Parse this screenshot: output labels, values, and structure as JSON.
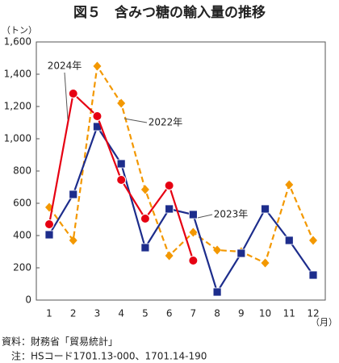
{
  "chart_data": {
    "type": "line",
    "title": "図５　含みつ糖の輸入量の推移",
    "y_unit": "（トン）",
    "x_unit": "（月）",
    "categories": [
      "1",
      "2",
      "3",
      "4",
      "5",
      "6",
      "7",
      "8",
      "9",
      "10",
      "11",
      "12"
    ],
    "series": [
      {
        "name": "2022年",
        "color": "#f39800",
        "line_style": "dashed",
        "marker": "diamond",
        "values": [
          575,
          370,
          1450,
          1220,
          685,
          275,
          420,
          310,
          300,
          230,
          715,
          370
        ]
      },
      {
        "name": "2023年",
        "color": "#1d2d8c",
        "line_style": "solid",
        "marker": "square",
        "values": [
          405,
          655,
          1075,
          845,
          325,
          565,
          530,
          50,
          290,
          565,
          370,
          155
        ]
      },
      {
        "name": "2024年",
        "color": "#e60012",
        "line_style": "solid",
        "marker": "circle",
        "values": [
          470,
          1280,
          1140,
          745,
          505,
          710,
          245,
          null,
          null,
          null,
          null,
          null
        ]
      }
    ],
    "ylim": [
      0,
      1600
    ],
    "yticks": [
      0,
      200,
      400,
      600,
      800,
      {
        "value": 1000,
        "label": "1,000"
      },
      {
        "value": 1200,
        "label": "1,200"
      },
      {
        "value": 1400,
        "label": "1,400"
      },
      {
        "value": 1600,
        "label": "1,600"
      }
    ],
    "notes": [
      "資料：財務省「貿易統計」",
      "注：HSコード1701.13-000、1701.14-190"
    ]
  }
}
